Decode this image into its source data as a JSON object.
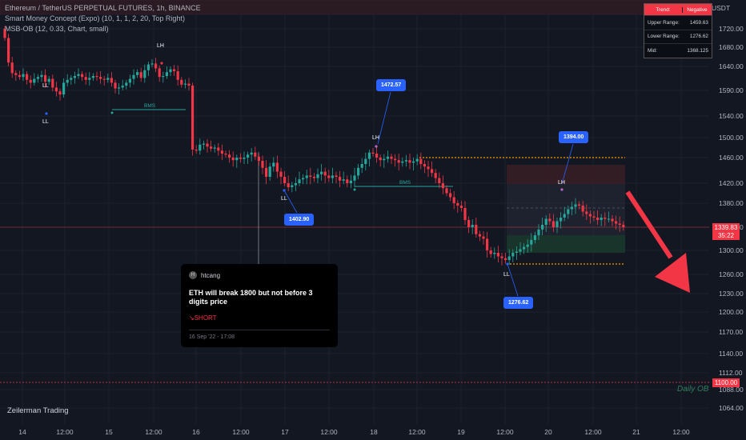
{
  "header": {
    "symbol_line": "Ethereum / TetherUS PERPETUAL FUTURES, 1h, BINANCE",
    "indicator1": "Smart Money Concept (Expo) (10, 1, 1, 2, 20, Top Right)",
    "indicator2": "MSB-OB (12, 0.33, Chart, small)"
  },
  "table": {
    "trend_label": "Trend:",
    "trend_value": "Negative",
    "upper_label": "Upper Range:",
    "upper_value": "1459.63",
    "lower_label": "Lower Range:",
    "lower_value": "1276.62",
    "mid_label": "Mid:",
    "mid_value": "1368.125"
  },
  "markers": {
    "lh1": "LH",
    "ll1": "LL",
    "ll2": "LL",
    "lh2": "LH",
    "ll3": "LL",
    "lh3": "LH",
    "ll4": "LL",
    "ll_small": "LL",
    "bms1": "BMS",
    "bms2": "BMS"
  },
  "bubbles": {
    "b1": "1472.57",
    "b2": "1402.90",
    "b3": "1394.00",
    "b4": "1276.62"
  },
  "card": {
    "avatar_letter": "H",
    "username": "htcang",
    "message": "ETH will break 1800 but not before 3 digits price",
    "direction": "↘SHORT",
    "date": "16 Sep '22 - 17:08"
  },
  "price_tag": {
    "price": "1339.83",
    "countdown": "35:22",
    "level": "1100.00"
  },
  "daily_ob": "Daily OB",
  "brand": "Zeilerman Trading",
  "colors": {
    "up": "#26a69a",
    "down": "#f23645",
    "bg": "#131722",
    "bubble": "#2962ff",
    "orange": "#ff9800",
    "arrow": "#f23645"
  },
  "chart_data": {
    "type": "candlestick",
    "title": "Ethereum / TetherUS PERPETUAL FUTURES, 1h, BINANCE",
    "y_unit": "USDT",
    "ylim": [
      1064,
      1745
    ],
    "y_ticks": [
      "1720.00",
      "1680.00",
      "1640.00",
      "1590.00",
      "1540.00",
      "1500.00",
      "1460.00",
      "1420.00",
      "1380.00",
      "1340.00",
      "1300.00",
      "1260.00",
      "1230.00",
      "1200.00",
      "1170.00",
      "1140.00",
      "1112.00",
      "1088.00",
      "1064.00"
    ],
    "y_tick_values": [
      1720,
      1680,
      1640,
      1590,
      1540,
      1500,
      1460,
      1420,
      1380,
      1340,
      1300,
      1260,
      1230,
      1200,
      1170,
      1140,
      1112,
      1088,
      1064
    ],
    "x_ticks": [
      "14",
      "12:00",
      "15",
      "12:00",
      "16",
      "12:00",
      "17",
      "12:00",
      "18",
      "12:00",
      "19",
      "12:00",
      "20",
      "12:00",
      "21",
      "12:00"
    ],
    "x_tick_positions": [
      0,
      12,
      24,
      36,
      48,
      60,
      72,
      84,
      96,
      108,
      120,
      132,
      144,
      156,
      168,
      180
    ],
    "closes": [
      1700,
      1648,
      1626,
      1622,
      1618,
      1624,
      1612,
      1606,
      1614,
      1618,
      1622,
      1608,
      1614,
      1596,
      1588,
      1582,
      1606,
      1612,
      1616,
      1620,
      1624,
      1618,
      1612,
      1616,
      1620,
      1618,
      1614,
      1612,
      1616,
      1606,
      1594,
      1596,
      1600,
      1606,
      1614,
      1622,
      1628,
      1616,
      1632,
      1644,
      1646,
      1636,
      1618,
      1620,
      1628,
      1634,
      1630,
      1612,
      1602,
      1604,
      1600,
      1476,
      1474,
      1486,
      1488,
      1482,
      1478,
      1480,
      1474,
      1468,
      1466,
      1460,
      1456,
      1460,
      1458,
      1460,
      1466,
      1470,
      1462,
      1455,
      1444,
      1430,
      1446,
      1452,
      1438,
      1430,
      1420,
      1412,
      1416,
      1420,
      1426,
      1428,
      1432,
      1430,
      1428,
      1434,
      1438,
      1432,
      1428,
      1432,
      1430,
      1424,
      1426,
      1420,
      1424,
      1432,
      1444,
      1450,
      1458,
      1470,
      1468,
      1460,
      1456,
      1458,
      1462,
      1458,
      1456,
      1452,
      1454,
      1456,
      1452,
      1454,
      1458,
      1450,
      1446,
      1442,
      1436,
      1428,
      1420,
      1410,
      1400,
      1392,
      1380,
      1376,
      1372,
      1352,
      1340,
      1344,
      1328,
      1324,
      1320,
      1300,
      1294,
      1296,
      1290,
      1287,
      1284,
      1290,
      1296,
      1298,
      1302,
      1306,
      1310,
      1318,
      1326,
      1336,
      1344,
      1354,
      1350,
      1340,
      1350,
      1356,
      1362,
      1370,
      1374,
      1378,
      1376,
      1366,
      1362,
      1358,
      1356,
      1352,
      1356,
      1354,
      1354,
      1350,
      1346,
      1344,
      1340
    ],
    "levels": {
      "resistance": 1459.63,
      "support": 1276.62,
      "daily_ob": 1100.0,
      "current": 1339.83
    },
    "grid": true
  }
}
